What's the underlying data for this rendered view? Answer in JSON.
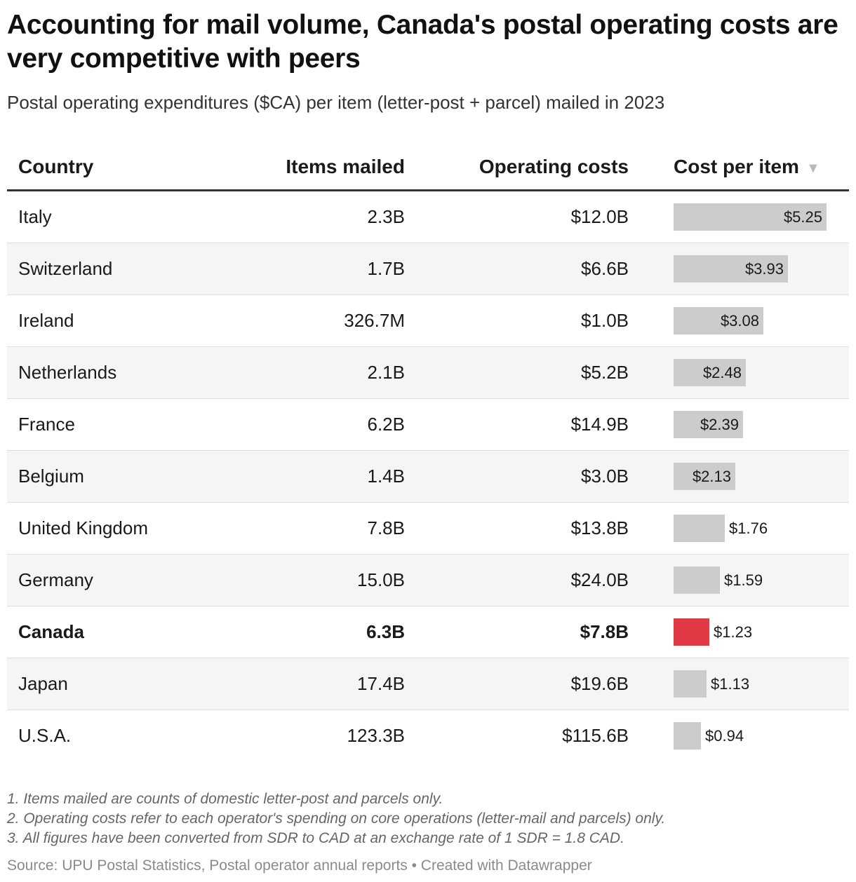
{
  "title": "Accounting for mail volume, Canada's postal operating costs are very competitive with peers",
  "subtitle": "Postal operating expenditures ($CA) per item (letter-post + parcel) mailed in 2023",
  "columns": {
    "country": "Country",
    "items": "Items mailed",
    "costs": "Operating costs",
    "cost_per_item": "Cost per item"
  },
  "sort_icon": "sort-descending-icon",
  "colors": {
    "bar": "#cccccc",
    "highlight": "#e23a44"
  },
  "chart_data": {
    "type": "table",
    "title": "Accounting for mail volume, Canada's postal operating costs are very competitive with peers",
    "subtitle": "Postal operating expenditures ($CA) per item (letter-post + parcel) mailed in 2023",
    "bar_column": "Cost per item",
    "bar_max": 5.25,
    "highlight": "Canada",
    "rows": [
      {
        "country": "Italy",
        "items": "2.3B",
        "costs": "$12.0B",
        "cost_per_item": 5.25,
        "label": "$5.25"
      },
      {
        "country": "Switzerland",
        "items": "1.7B",
        "costs": "$6.6B",
        "cost_per_item": 3.93,
        "label": "$3.93"
      },
      {
        "country": "Ireland",
        "items": "326.7M",
        "costs": "$1.0B",
        "cost_per_item": 3.08,
        "label": "$3.08"
      },
      {
        "country": "Netherlands",
        "items": "2.1B",
        "costs": "$5.2B",
        "cost_per_item": 2.48,
        "label": "$2.48"
      },
      {
        "country": "France",
        "items": "6.2B",
        "costs": "$14.9B",
        "cost_per_item": 2.39,
        "label": "$2.39"
      },
      {
        "country": "Belgium",
        "items": "1.4B",
        "costs": "$3.0B",
        "cost_per_item": 2.13,
        "label": "$2.13"
      },
      {
        "country": "United Kingdom",
        "items": "7.8B",
        "costs": "$13.8B",
        "cost_per_item": 1.76,
        "label": "$1.76"
      },
      {
        "country": "Germany",
        "items": "15.0B",
        "costs": "$24.0B",
        "cost_per_item": 1.59,
        "label": "$1.59"
      },
      {
        "country": "Canada",
        "items": "6.3B",
        "costs": "$7.8B",
        "cost_per_item": 1.23,
        "label": "$1.23"
      },
      {
        "country": "Japan",
        "items": "17.4B",
        "costs": "$19.6B",
        "cost_per_item": 1.13,
        "label": "$1.13"
      },
      {
        "country": "U.S.A.",
        "items": "123.3B",
        "costs": "$115.6B",
        "cost_per_item": 0.94,
        "label": "$0.94"
      }
    ]
  },
  "notes": [
    "1. Items mailed are counts of domestic letter-post and parcels only.",
    "2. Operating costs refer to each operator's spending on core operations (letter-mail and parcels) only.",
    "3. All figures have been converted from SDR to CAD at an exchange rate of 1 SDR = 1.8 CAD."
  ],
  "source": "Source: UPU Postal Statistics, Postal operator annual reports • Created with Datawrapper"
}
